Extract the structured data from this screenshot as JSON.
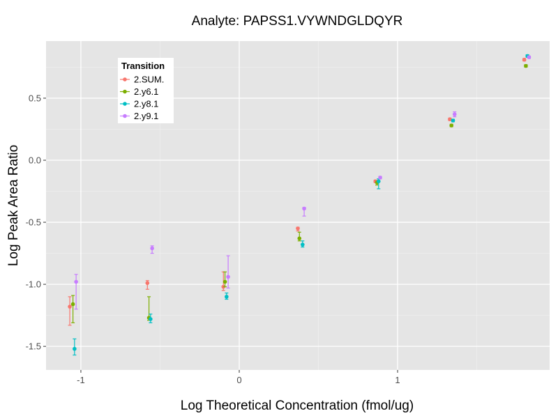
{
  "chart_data": {
    "type": "scatter",
    "title": "Analyte: PAPSS1.VYWNDGLDQYR",
    "xlabel": "Log Theoretical Concentration (fmol/ug)",
    "ylabel": "Log Peak Area Ratio",
    "xlim": [
      -1.22,
      1.96
    ],
    "ylim": [
      -1.69,
      0.96
    ],
    "x_ticks": [
      {
        "value": -1,
        "label": "-1"
      },
      {
        "value": 0,
        "label": "0"
      },
      {
        "value": 1,
        "label": "1"
      }
    ],
    "y_ticks": [
      {
        "value": -1.5,
        "label": "-1.5"
      },
      {
        "value": -1.0,
        "label": "-1.0"
      },
      {
        "value": -0.5,
        "label": "-0.5"
      },
      {
        "value": 0.0,
        "label": "0.0"
      },
      {
        "value": 0.5,
        "label": "0.5"
      }
    ],
    "grid": true,
    "error_bars": true,
    "legend": {
      "title": "Transition",
      "position": "top-left"
    },
    "series": [
      {
        "name": "2.SUM.",
        "color": "#F8766D",
        "points": [
          {
            "x": -1.07,
            "y": -1.18,
            "lo": -1.33,
            "hi": -1.1
          },
          {
            "x": -0.58,
            "y": -0.99,
            "lo": -1.04,
            "hi": -0.97
          },
          {
            "x": -0.1,
            "y": -1.02,
            "lo": -1.05,
            "hi": -0.9
          },
          {
            "x": 0.37,
            "y": -0.55,
            "lo": -0.57,
            "hi": -0.54
          },
          {
            "x": 0.86,
            "y": -0.17,
            "lo": -0.18,
            "hi": -0.16
          },
          {
            "x": 1.33,
            "y": 0.33,
            "lo": 0.32,
            "hi": 0.34
          },
          {
            "x": 1.8,
            "y": 0.81,
            "lo": 0.8,
            "hi": 0.82
          }
        ]
      },
      {
        "name": "2.y6.1",
        "color": "#7CAE00",
        "points": [
          {
            "x": -1.05,
            "y": -1.16,
            "lo": -1.31,
            "hi": -1.09
          },
          {
            "x": -0.57,
            "y": -1.27,
            "lo": -1.29,
            "hi": -1.1
          },
          {
            "x": -0.09,
            "y": -0.98,
            "lo": -1.02,
            "hi": -0.9
          },
          {
            "x": 0.38,
            "y": -0.63,
            "lo": -0.65,
            "hi": -0.58
          },
          {
            "x": 0.87,
            "y": -0.18,
            "lo": -0.2,
            "hi": -0.17
          },
          {
            "x": 1.34,
            "y": 0.28,
            "lo": 0.27,
            "hi": 0.29
          },
          {
            "x": 1.81,
            "y": 0.76,
            "lo": 0.75,
            "hi": 0.77
          }
        ]
      },
      {
        "name": "2.y8.1",
        "color": "#00BFC4",
        "points": [
          {
            "x": -1.04,
            "y": -1.52,
            "lo": -1.57,
            "hi": -1.44
          },
          {
            "x": -0.56,
            "y": -1.28,
            "lo": -1.31,
            "hi": -1.24
          },
          {
            "x": -0.08,
            "y": -1.1,
            "lo": -1.12,
            "hi": -1.07
          },
          {
            "x": 0.4,
            "y": -0.68,
            "lo": -0.7,
            "hi": -0.65
          },
          {
            "x": 0.88,
            "y": -0.17,
            "lo": -0.23,
            "hi": -0.15
          },
          {
            "x": 1.35,
            "y": 0.32,
            "lo": 0.31,
            "hi": 0.33
          },
          {
            "x": 1.82,
            "y": 0.84,
            "lo": 0.83,
            "hi": 0.85
          }
        ]
      },
      {
        "name": "2.y9.1",
        "color": "#C77CFF",
        "points": [
          {
            "x": -1.03,
            "y": -0.98,
            "lo": -1.2,
            "hi": -0.92
          },
          {
            "x": -0.55,
            "y": -0.71,
            "lo": -0.75,
            "hi": -0.69
          },
          {
            "x": -0.07,
            "y": -0.94,
            "lo": -1.03,
            "hi": -0.77
          },
          {
            "x": 0.41,
            "y": -0.39,
            "lo": -0.45,
            "hi": -0.38
          },
          {
            "x": 0.89,
            "y": -0.14,
            "lo": -0.15,
            "hi": -0.13
          },
          {
            "x": 1.36,
            "y": 0.37,
            "lo": 0.35,
            "hi": 0.39
          },
          {
            "x": 1.83,
            "y": 0.83,
            "lo": 0.82,
            "hi": 0.84
          }
        ]
      }
    ]
  }
}
